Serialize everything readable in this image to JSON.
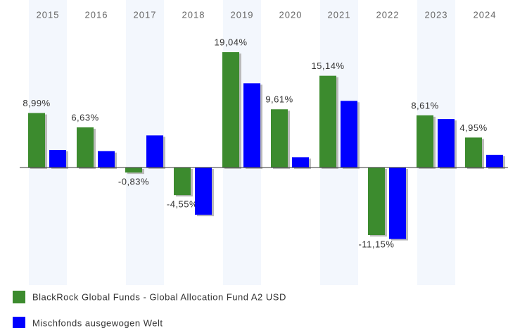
{
  "chart_data": {
    "type": "bar",
    "categories": [
      "2015",
      "2016",
      "2017",
      "2018",
      "2019",
      "2020",
      "2021",
      "2022",
      "2023",
      "2024"
    ],
    "series": [
      {
        "name": "BlackRock Global Funds - Global Allocation Fund A2 USD",
        "color": "#3c8b2e",
        "values": [
          8.99,
          6.63,
          -0.83,
          -4.55,
          19.04,
          9.61,
          15.14,
          -11.15,
          8.61,
          4.95
        ],
        "value_labels": [
          "8,99%",
          "6,63%",
          "-0,83%",
          "-4,55%",
          "19,04%",
          "9,61%",
          "15,14%",
          "-11,15%",
          "8,61%",
          "4,95%"
        ]
      },
      {
        "name": "Mischfonds ausgewogen  Welt",
        "color": "#0000ff",
        "values": [
          2.9,
          2.7,
          5.3,
          -7.8,
          13.9,
          1.7,
          11.0,
          -11.8,
          8.0,
          2.1
        ]
      }
    ]
  }
}
